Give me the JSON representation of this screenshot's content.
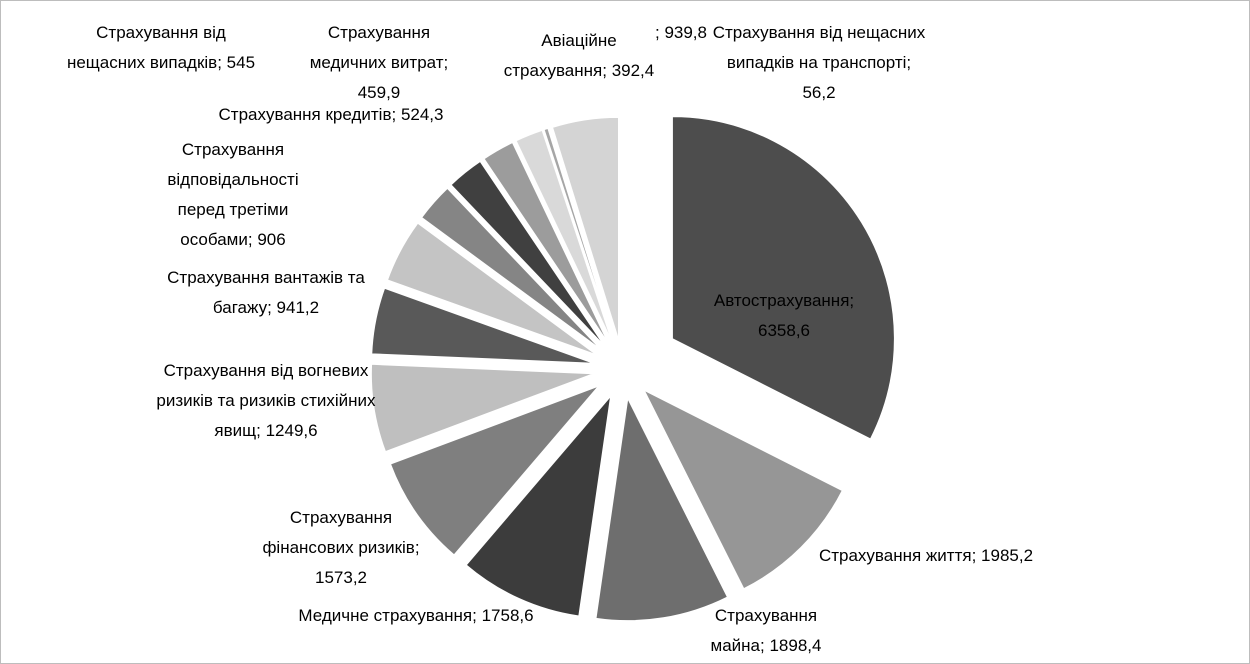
{
  "chart_data": {
    "type": "pie",
    "categories": [
      "Автострахування;",
      "Страхування життя;",
      "Страхування майна;",
      "Медичне страхування;",
      "Страхування фінансових ризиків;",
      "Страхування від вогневих ризиків та ризиків стихійних явищ;",
      "Страхування вантажів та багажу;",
      "Страхування відповідальності перед третіми особами;",
      "Страхування від нещасних випадків;",
      "Страхування кредитів;",
      "Страхування медичних витрат;",
      "Авіаційне страхування;",
      "Страхування від нещасних випадків на транспорті;",
      null
    ],
    "values": [
      6358.6,
      1985.2,
      1898.4,
      1758.6,
      1573.2,
      1249.6,
      941.2,
      906,
      545,
      524.3,
      459.9,
      392.4,
      56.2,
      939.8
    ],
    "value_labels": [
      "6358,6",
      "1985,2",
      "1898,4",
      "1758,6",
      "1573,2",
      "1249,6",
      "941,2",
      "906",
      "545",
      "524,3",
      "459,9",
      "392,4",
      "56,2",
      "; 939,8"
    ],
    "colors": [
      "#4d4d4d",
      "#969696",
      "#6e6e6e",
      "#3c3c3c",
      "#7f7f7f",
      "#bfbfbf",
      "#595959",
      "#c4c4c4",
      "#858585",
      "#404040",
      "#9c9c9c",
      "#d9d9d9",
      "#a6a6a6",
      "#d4d4d4"
    ]
  }
}
